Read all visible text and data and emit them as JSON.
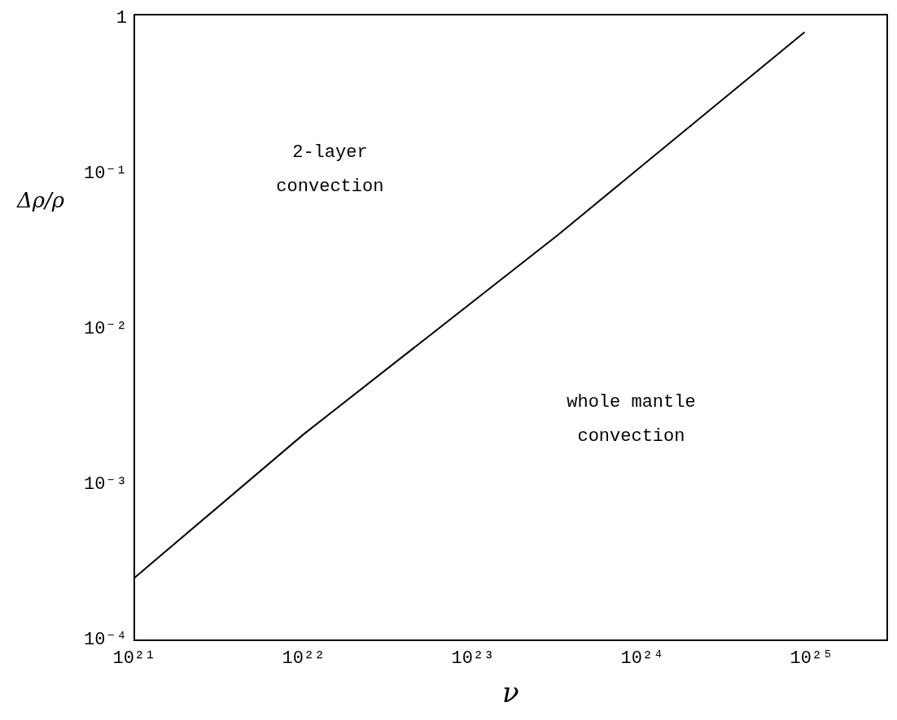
{
  "chart_data": {
    "type": "line",
    "xlabel": "ν",
    "ylabel": "Δρ/ρ",
    "log": "xy",
    "x": [
      1e+21,
      1e+22,
      3.16e+23,
      9.1e+24
    ],
    "series": [
      {
        "color": "#000000",
        "values": [
          0.00025,
          0.0021,
          0.04,
          0.81
        ]
      }
    ],
    "xlim": [
      1e+21,
      2.8e+25
    ],
    "xticks": [
      {
        "value": 1e+21,
        "label": "10²¹"
      },
      {
        "value": 1e+22,
        "label": "10²²"
      },
      {
        "value": 1e+23,
        "label": "10²³"
      },
      {
        "value": 1e+24,
        "label": "10²⁴"
      },
      {
        "value": 1e+25,
        "label": "10²⁵"
      }
    ],
    "ylim": [
      0.0001,
      1.05
    ],
    "yticks": [
      {
        "value": 0.0001,
        "label": "10⁻⁴"
      },
      {
        "value": 0.001,
        "label": "10⁻³"
      },
      {
        "value": 0.01,
        "label": "10⁻²"
      },
      {
        "value": 0.1,
        "label": "10⁻¹"
      },
      1
    ],
    "annotations": [
      "2-layer\nconvection",
      "whole mantle\nconvection"
    ],
    "grid": false,
    "legend": false,
    "marker": "none",
    "line_style": "solid"
  }
}
